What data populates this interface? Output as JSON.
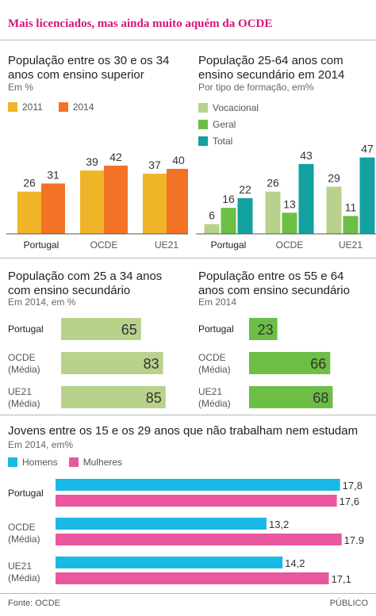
{
  "headline": "Mais licenciados, mas ainda muito aquém da OCDE",
  "footer": {
    "source": "Fonte: OCDE",
    "publisher": "PÚBLICO"
  },
  "colors": {
    "gold": "#f0b428",
    "orange": "#f27325",
    "light_green": "#b8d28c",
    "green": "#6cbe45",
    "teal": "#12a1a0",
    "cyan": "#19b9e6",
    "pink": "#e9579f",
    "accent": "#d6137a"
  },
  "chart_data": [
    {
      "id": "superior",
      "type": "bar",
      "title": "População entre os 30 e os 34 anos com ensino superior",
      "subtitle": "Em %",
      "categories": [
        "Portugal",
        "OCDE",
        "UE21"
      ],
      "series": [
        {
          "name": "2011",
          "values": [
            26,
            39,
            37
          ],
          "color": "#f0b428"
        },
        {
          "name": "2014",
          "values": [
            31,
            42,
            40
          ],
          "color": "#f27325"
        }
      ],
      "legend_position": "top-left"
    },
    {
      "id": "secundario_tipo",
      "type": "bar",
      "title": "População 25-64 anos com ensino secundário em 2014",
      "subtitle": "Por tipo de formação, em%",
      "categories": [
        "Portugal",
        "OCDE",
        "UE21"
      ],
      "series": [
        {
          "name": "Vocacional",
          "values": [
            6,
            26,
            29
          ],
          "color": "#b8d28c"
        },
        {
          "name": "Geral",
          "values": [
            16,
            13,
            11
          ],
          "color": "#6cbe45"
        },
        {
          "name": "Total",
          "values": [
            22,
            43,
            47
          ],
          "color": "#12a1a0"
        }
      ],
      "legend_position": "top-left"
    },
    {
      "id": "secundario_25_34",
      "type": "bar",
      "orientation": "horizontal",
      "title": "População com 25 a 34 anos com ensino secundário",
      "subtitle": "Em 2014, em %",
      "categories": [
        "Portugal",
        "OCDE (Média)",
        "UE21 (Média)"
      ],
      "category_lines": [
        [
          "Portugal"
        ],
        [
          "OCDE",
          "(Média)"
        ],
        [
          "UE21",
          "(Média)"
        ]
      ],
      "values": [
        65,
        83,
        85
      ],
      "color": "#b8d28c"
    },
    {
      "id": "secundario_55_64",
      "type": "bar",
      "orientation": "horizontal",
      "title": "População entre os 55 e 64 anos com ensino secundário",
      "subtitle": "Em 2014",
      "categories": [
        "Portugal",
        "OCDE (Média)",
        "UE21 (Média)"
      ],
      "category_lines": [
        [
          "Portugal"
        ],
        [
          "OCDE",
          "(Média)"
        ],
        [
          "UE21",
          "(Média)"
        ]
      ],
      "values": [
        23,
        66,
        68
      ],
      "color": "#6cbe45"
    },
    {
      "id": "nem_nem",
      "type": "bar",
      "orientation": "horizontal",
      "title": "Jovens entre os 15 e os 29 anos que não trabalham nem estudam",
      "subtitle": "Em 2014, em%",
      "categories": [
        "Portugal",
        "OCDE (Média)",
        "UE21 (Média)"
      ],
      "category_lines": [
        [
          "Portugal"
        ],
        [
          "OCDE",
          "(Média)"
        ],
        [
          "UE21",
          "(Média)"
        ]
      ],
      "series": [
        {
          "name": "Homens",
          "values": [
            17.8,
            13.2,
            14.2
          ],
          "labels": [
            "17,8",
            "13,2",
            "14,2"
          ],
          "color": "#19b9e6"
        },
        {
          "name": "Mulheres",
          "values": [
            17.6,
            17.9,
            17.1
          ],
          "labels": [
            "17,6",
            "17.9",
            "17,1"
          ],
          "color": "#e9579f"
        }
      ],
      "legend_position": "top-left"
    }
  ]
}
